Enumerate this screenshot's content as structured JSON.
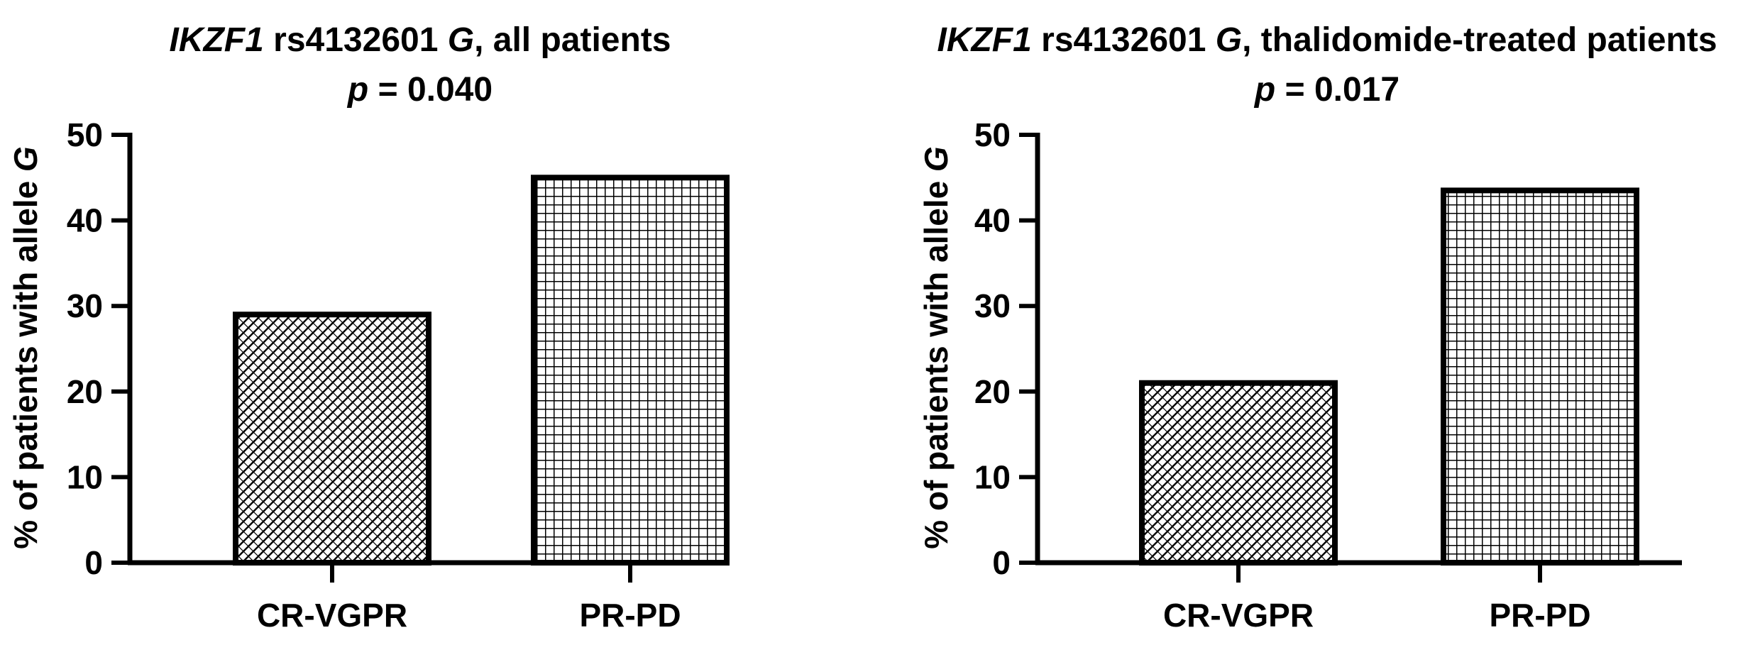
{
  "chart_data": [
    {
      "type": "bar",
      "title_gene": "IKZF1",
      "title_snp": " rs4132601 ",
      "title_allele": "G",
      "title_rest": ", all patients",
      "subtitle_p": "p",
      "subtitle_value": " = 0.040",
      "ylabel_text": "% of patients with allele ",
      "ylabel_allele": "G",
      "categories": [
        "CR-VGPR",
        "PR-PD"
      ],
      "values": [
        29,
        45
      ],
      "patterns": [
        "diagonal-crosshatch",
        "grid"
      ],
      "ylim": [
        0,
        50
      ],
      "yticks": [
        0,
        10,
        20,
        30,
        40,
        50
      ]
    },
    {
      "type": "bar",
      "title_gene": "IKZF1",
      "title_snp": " rs4132601 ",
      "title_allele": "G",
      "title_rest": ", thalidomide-treated patients",
      "subtitle_p": "p",
      "subtitle_value": " = 0.017",
      "ylabel_text": "% of patients with allele ",
      "ylabel_allele": "G",
      "categories": [
        "CR-VGPR",
        "PR-PD"
      ],
      "values": [
        21,
        43.5
      ],
      "patterns": [
        "diagonal-crosshatch",
        "grid"
      ],
      "ylim": [
        0,
        50
      ],
      "yticks": [
        0,
        10,
        20,
        30,
        40,
        50
      ]
    }
  ]
}
